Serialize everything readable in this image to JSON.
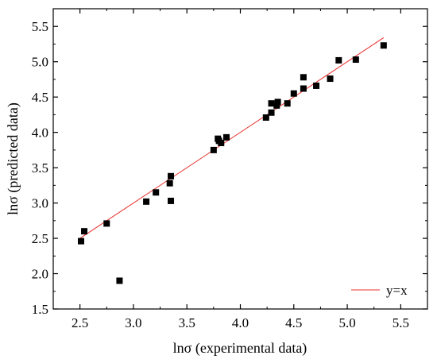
{
  "chart_data": {
    "type": "scatter",
    "xlabel": "lnσ (experimental data)",
    "ylabel": "lnσ (predicted data)",
    "xlim": [
      2.25,
      5.75
    ],
    "ylim": [
      1.5,
      5.75
    ],
    "x_ticks": [
      "2.5",
      "3.0",
      "3.5",
      "4.0",
      "4.5",
      "5.0",
      "5.5"
    ],
    "y_ticks": [
      "1.5",
      "2.0",
      "2.5",
      "3.0",
      "3.5",
      "4.0",
      "4.5",
      "5.0",
      "5.5"
    ],
    "points": [
      {
        "x": 2.51,
        "y": 2.46
      },
      {
        "x": 2.54,
        "y": 2.6
      },
      {
        "x": 2.75,
        "y": 2.71
      },
      {
        "x": 2.87,
        "y": 1.9
      },
      {
        "x": 3.12,
        "y": 3.02
      },
      {
        "x": 3.21,
        "y": 3.15
      },
      {
        "x": 3.34,
        "y": 3.28
      },
      {
        "x": 3.35,
        "y": 3.38
      },
      {
        "x": 3.35,
        "y": 3.03
      },
      {
        "x": 3.75,
        "y": 3.75
      },
      {
        "x": 3.79,
        "y": 3.91
      },
      {
        "x": 3.8,
        "y": 3.88
      },
      {
        "x": 3.82,
        "y": 3.85
      },
      {
        "x": 3.87,
        "y": 3.93
      },
      {
        "x": 4.24,
        "y": 4.21
      },
      {
        "x": 4.29,
        "y": 4.28
      },
      {
        "x": 4.29,
        "y": 4.41
      },
      {
        "x": 4.34,
        "y": 4.38
      },
      {
        "x": 4.35,
        "y": 4.43
      },
      {
        "x": 4.44,
        "y": 4.41
      },
      {
        "x": 4.5,
        "y": 4.55
      },
      {
        "x": 4.59,
        "y": 4.62
      },
      {
        "x": 4.59,
        "y": 4.78
      },
      {
        "x": 4.71,
        "y": 4.66
      },
      {
        "x": 4.84,
        "y": 4.76
      },
      {
        "x": 4.92,
        "y": 5.02
      },
      {
        "x": 5.08,
        "y": 5.03
      },
      {
        "x": 5.34,
        "y": 5.23
      }
    ],
    "reference_line": {
      "name": "y=x",
      "x": [
        2.5,
        5.34
      ],
      "y": [
        2.5,
        5.34
      ],
      "color": "#e8302b"
    },
    "marker_color": "#000000",
    "grid": false,
    "legend_position": "bottom-right"
  }
}
